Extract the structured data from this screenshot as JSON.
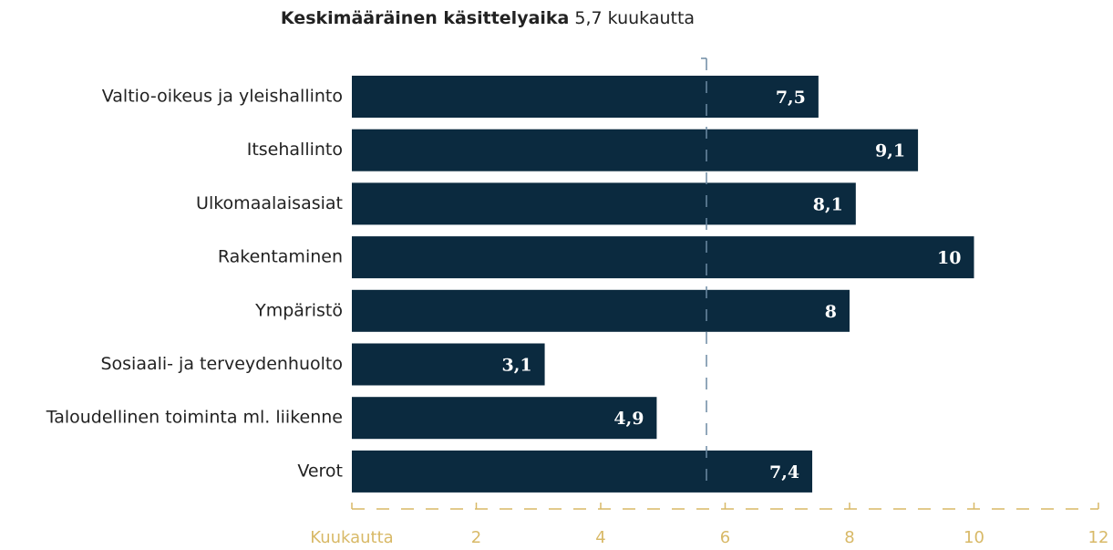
{
  "chart_data": {
    "type": "hbar",
    "title": "Keskimääräinen käsittelyaika",
    "average": {
      "value": 5.7,
      "label": "5,7 kuukautta"
    },
    "categories": [
      "Valtio-oikeus ja yleishallinto",
      "Itsehallinto",
      "Ulkomaalaisasiat",
      "Rakentaminen",
      "Ympäristö",
      "Sosiaali- ja terveydenhuolto",
      "Taloudellinen toiminta ml. liikenne",
      "Verot"
    ],
    "values": [
      7.5,
      9.1,
      8.1,
      10,
      8,
      3.1,
      4.9,
      7.4
    ],
    "value_labels": [
      "7,5",
      "9,1",
      "8,1",
      "10",
      "8",
      "3,1",
      "4,9",
      "7,4"
    ],
    "color": "#0b2a3f",
    "axis_color": "#d8b967",
    "average_color": "#6d8aa3",
    "xlim": [
      0,
      12
    ],
    "xticks": [
      {
        "value": 0,
        "label": "Kuukautta"
      },
      2,
      4,
      6,
      8,
      10,
      12
    ]
  }
}
